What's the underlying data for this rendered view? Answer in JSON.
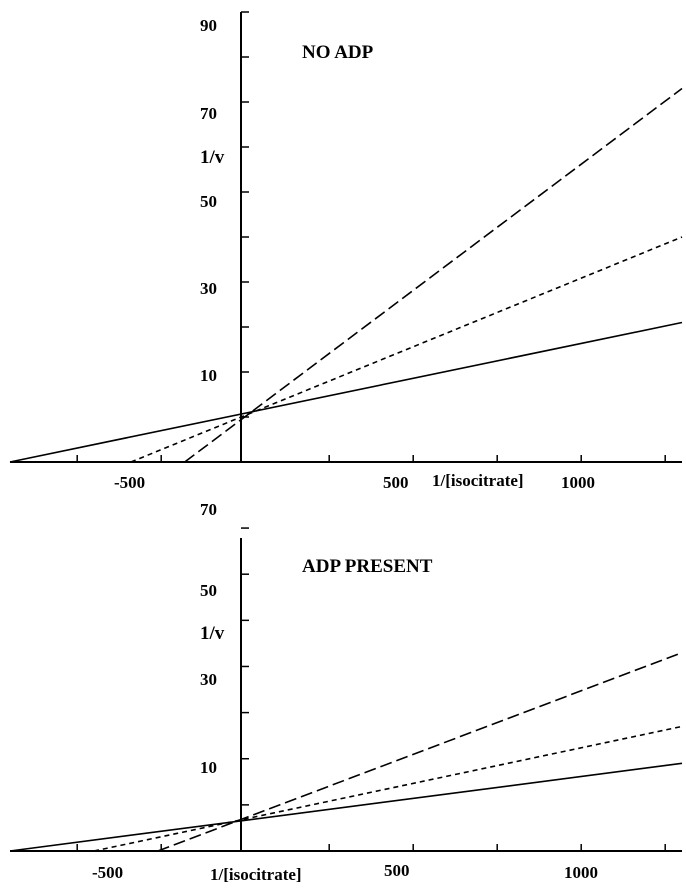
{
  "chart_data": [
    {
      "type": "line",
      "title": "NO ADP",
      "xlabel": "1/[isocitrate]",
      "ylabel": "1/v",
      "x_tick_labels": [
        "-500",
        "500",
        "1000"
      ],
      "y_tick_labels": [
        "10",
        "30",
        "50",
        "70",
        "90"
      ],
      "xlim": [
        -700,
        1300
      ],
      "ylim": [
        0,
        100
      ],
      "series": [
        {
          "style": "solid",
          "x": [
            -700,
            1300
          ],
          "y": [
            0,
            31
          ]
        },
        {
          "style": "short-dash",
          "x": [
            -340,
            1300
          ],
          "y": [
            0,
            50
          ]
        },
        {
          "style": "long-dash",
          "x": [
            -180,
            1300
          ],
          "y": [
            0,
            83
          ]
        }
      ]
    },
    {
      "type": "line",
      "title": "ADP PRESENT",
      "xlabel": "1/[isocitrate]",
      "ylabel": "1/v",
      "x_tick_labels": [
        "-500",
        "500",
        "1000"
      ],
      "y_tick_labels": [
        "10",
        "30",
        "50",
        "70"
      ],
      "xlim": [
        -700,
        1300
      ],
      "ylim": [
        0,
        75
      ],
      "series": [
        {
          "style": "solid",
          "x": [
            -700,
            1300
          ],
          "y": [
            0,
            19
          ]
        },
        {
          "style": "short-dash",
          "x": [
            -450,
            1300
          ],
          "y": [
            0,
            27
          ]
        },
        {
          "style": "long-dash",
          "x": [
            -260,
            1300
          ],
          "y": [
            0,
            43
          ]
        }
      ]
    }
  ]
}
